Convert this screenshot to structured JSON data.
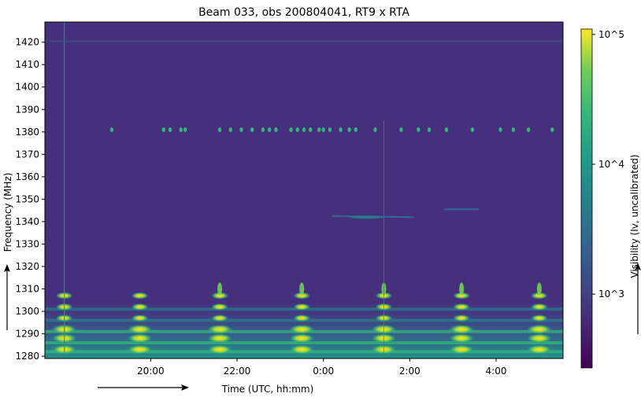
{
  "chart_data": {
    "type": "heatmap",
    "title": "Beam 033, obs 200804041, RT9 x RTA",
    "xlabel": "Time (UTC, hh:mm)",
    "ylabel": "Frequency (MHz)",
    "colorbar_label": "Visibility (Iv, uncalibrated)",
    "colormap": "viridis",
    "color_scale": "log",
    "x_ticks": [
      "20:00",
      "22:00",
      "0:00",
      "2:00",
      "4:00"
    ],
    "x_tick_hours": [
      20,
      22,
      24,
      26,
      28
    ],
    "x_range_hours": [
      17.55,
      29.55
    ],
    "y_ticks": [
      1280,
      1290,
      1300,
      1310,
      1320,
      1330,
      1340,
      1350,
      1360,
      1370,
      1380,
      1390,
      1400,
      1410,
      1420
    ],
    "ylim": [
      1279,
      1429
    ],
    "colorbar_ticks": [
      "10^5",
      "10^4",
      "10^3"
    ],
    "colorbar_tick_values": [
      100000,
      10000,
      1000
    ],
    "colorbar_range": [
      270,
      110000
    ],
    "colors": {
      "low": "#440154",
      "background": "#46307e",
      "mid": "#21918c",
      "high": "#fde725"
    },
    "features": {
      "continuous_line_mhz": 1420.4,
      "rfi_line_mhz": 1381,
      "rfi_line_times_hours": [
        19.1,
        20.3,
        20.45,
        20.7,
        20.8,
        21.6,
        21.85,
        22.1,
        22.35,
        22.6,
        22.75,
        22.9,
        23.25,
        23.4,
        23.55,
        23.7,
        23.9,
        24.0,
        24.15,
        24.4,
        24.6,
        24.75,
        25.2,
        25.8,
        26.2,
        26.45,
        26.85,
        27.45,
        28.1,
        28.4,
        28.75,
        29.3
      ],
      "broadband_burst_hours": [
        18.0,
        19.75,
        21.6,
        23.5,
        25.4,
        27.2,
        29.0
      ],
      "burst_band_mhz": [
        1280,
        1312
      ],
      "spike_hours": [
        18.0,
        25.4
      ],
      "drift_line": {
        "start_hour": 24.2,
        "end_hour": 26.1,
        "start_mhz": 1342.5,
        "end_mhz": 1342.0
      },
      "faint_line": {
        "start_hour": 26.8,
        "end_hour": 27.6,
        "mhz": 1345.5
      }
    }
  }
}
